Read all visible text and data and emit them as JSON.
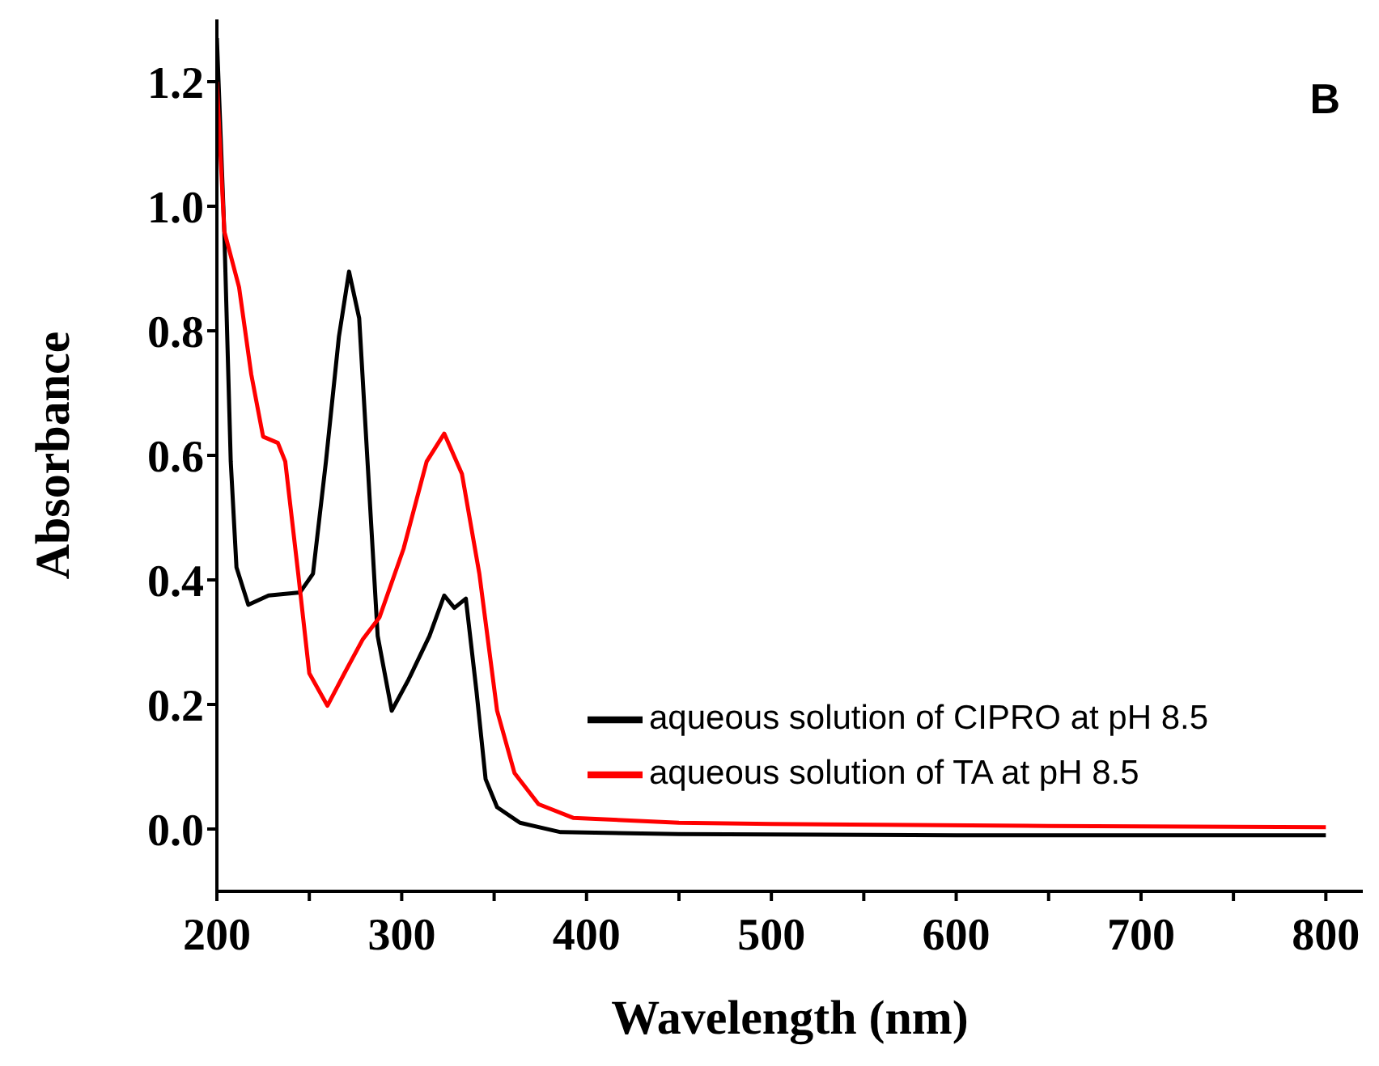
{
  "chart_data": {
    "type": "line",
    "xlabel": "Wavelength (nm)",
    "ylabel": "Absorbance",
    "annotations": [
      "B"
    ],
    "xlim": [
      200,
      820
    ],
    "ylim": [
      -0.1,
      1.3
    ],
    "xticks": [
      200,
      {
        "value": 250,
        "label": null
      },
      300,
      {
        "value": 350,
        "label": null
      },
      400,
      {
        "value": 450,
        "label": null
      },
      500,
      {
        "value": 550,
        "label": null
      },
      600,
      {
        "value": 650,
        "label": null
      },
      700,
      {
        "value": 750,
        "label": null
      },
      800
    ],
    "yticks": [
      {
        "value": 0,
        "label": "0.0"
      },
      0.2,
      0.4,
      0.6,
      0.8,
      {
        "value": 1,
        "label": "1.0"
      },
      1.2
    ],
    "grid": false,
    "legend": "right",
    "marker": "none",
    "line_style": "solid",
    "series": [
      {
        "name": "aqueous solution of CIPRO at pH 8.5",
        "color": "#000000",
        "x": [
          200,
          204,
          207.5,
          210.6,
          217,
          228,
          245,
          252,
          259,
          266,
          271.5,
          277,
          281.5,
          287,
          294.6,
          303.7,
          315,
          323,
          328.5,
          334.7,
          340.5,
          345.4,
          351.6,
          364,
          386,
          450,
          600,
          800
        ],
        "values": [
          1.27,
          0.96,
          0.59,
          0.42,
          0.36,
          0.375,
          0.38,
          0.41,
          0.59,
          0.79,
          0.895,
          0.82,
          0.59,
          0.31,
          0.19,
          0.24,
          0.31,
          0.375,
          0.355,
          0.37,
          0.22,
          0.08,
          0.035,
          0.01,
          -0.005,
          -0.008,
          -0.01,
          -0.01
        ]
      },
      {
        "name": "aqueous solution of TA at pH 8.5",
        "color": "#ff0000",
        "x": [
          200,
          204,
          212,
          218.6,
          225,
          233,
          237,
          244,
          250,
          259.8,
          269,
          279,
          288,
          301,
          313.5,
          323,
          332.6,
          342,
          351.6,
          361,
          374,
          392.7,
          450,
          500,
          650,
          800
        ],
        "values": [
          1.2,
          0.96,
          0.87,
          0.73,
          0.63,
          0.62,
          0.59,
          0.41,
          0.25,
          0.198,
          0.25,
          0.305,
          0.34,
          0.45,
          0.59,
          0.635,
          0.57,
          0.41,
          0.19,
          0.09,
          0.04,
          0.018,
          0.01,
          0.008,
          0.005,
          0.003
        ]
      }
    ]
  }
}
